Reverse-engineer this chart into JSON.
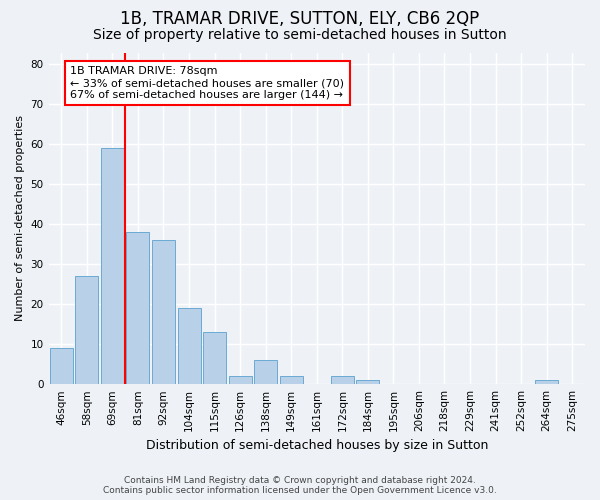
{
  "title": "1B, TRAMAR DRIVE, SUTTON, ELY, CB6 2QP",
  "subtitle": "Size of property relative to semi-detached houses in Sutton",
  "xlabel": "Distribution of semi-detached houses by size in Sutton",
  "ylabel": "Number of semi-detached properties",
  "bar_labels": [
    "46sqm",
    "58sqm",
    "69sqm",
    "81sqm",
    "92sqm",
    "104sqm",
    "115sqm",
    "126sqm",
    "138sqm",
    "149sqm",
    "161sqm",
    "172sqm",
    "184sqm",
    "195sqm",
    "206sqm",
    "218sqm",
    "229sqm",
    "241sqm",
    "252sqm",
    "264sqm",
    "275sqm"
  ],
  "bar_values": [
    9,
    27,
    59,
    38,
    36,
    19,
    13,
    2,
    6,
    2,
    0,
    2,
    1,
    0,
    0,
    0,
    0,
    0,
    0,
    1,
    0
  ],
  "bar_color": "#b8d0e8",
  "bar_edge_color": "#6aaad4",
  "vline_color": "red",
  "vline_x_index": 2.5,
  "annotation_title": "1B TRAMAR DRIVE: 78sqm",
  "annotation_line1": "← 33% of semi-detached houses are smaller (70)",
  "annotation_line2": "67% of semi-detached houses are larger (144) →",
  "annotation_box_color": "white",
  "annotation_box_edge_color": "red",
  "ylim": [
    0,
    83
  ],
  "yticks": [
    0,
    10,
    20,
    30,
    40,
    50,
    60,
    70,
    80
  ],
  "footer_line1": "Contains HM Land Registry data © Crown copyright and database right 2024.",
  "footer_line2": "Contains public sector information licensed under the Open Government Licence v3.0.",
  "background_color": "#eef2f7",
  "grid_color": "white",
  "title_fontsize": 12,
  "subtitle_fontsize": 10,
  "annotation_fontsize": 8,
  "ylabel_fontsize": 8,
  "xlabel_fontsize": 9,
  "tick_fontsize": 7.5,
  "footer_fontsize": 6.5
}
